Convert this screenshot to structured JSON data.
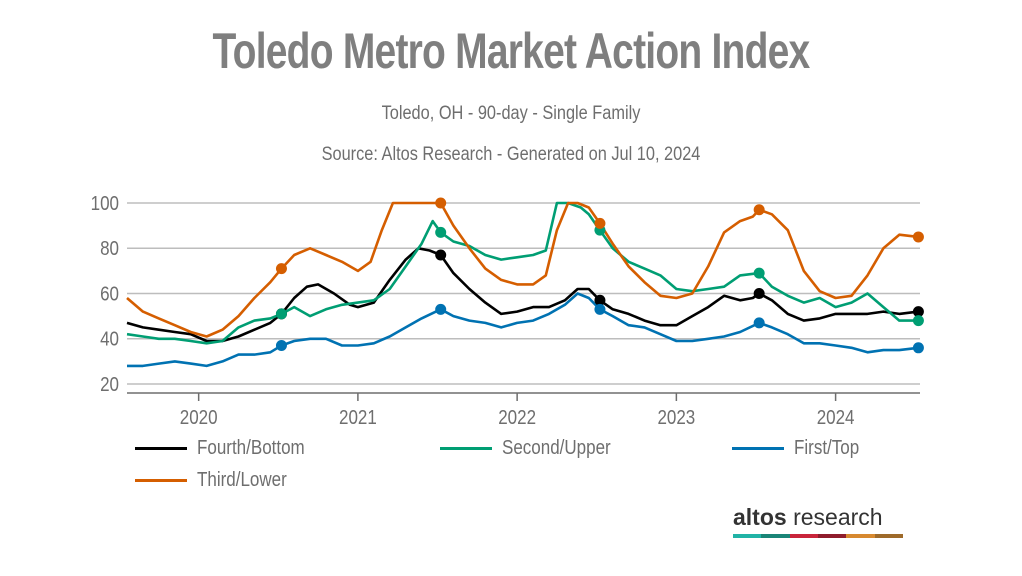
{
  "chart_data": {
    "type": "line",
    "title": "Toledo Metro Market Action Index",
    "subtitle": "Toledo, OH - 90-day - Single Family",
    "source": "Source: Altos Research - Generated on Jul 10, 2024",
    "xlabel": "",
    "ylabel": "",
    "x_range": [
      2019.55,
      2024.53
    ],
    "ylim": [
      20,
      100
    ],
    "yticks": [
      20,
      40,
      60,
      80,
      100
    ],
    "xticks": [
      {
        "value": 2020.0,
        "label": "2020"
      },
      {
        "value": 2021.0,
        "label": "2021"
      },
      {
        "value": 2022.0,
        "label": "2022"
      },
      {
        "value": 2023.0,
        "label": "2023"
      },
      {
        "value": 2024.0,
        "label": "2024"
      }
    ],
    "grid": true,
    "legend_position": "bottom",
    "marker_x": [
      2020.52,
      2021.52,
      2022.52,
      2023.52,
      2024.52
    ],
    "series": [
      {
        "name": "Fourth/Bottom",
        "color": "#000000",
        "x": [
          2019.55,
          2019.65,
          2019.75,
          2019.85,
          2019.95,
          2020.05,
          2020.15,
          2020.25,
          2020.35,
          2020.45,
          2020.52,
          2020.6,
          2020.68,
          2020.75,
          2020.85,
          2020.95,
          2021.0,
          2021.1,
          2021.2,
          2021.3,
          2021.38,
          2021.45,
          2021.52,
          2021.6,
          2021.7,
          2021.8,
          2021.9,
          2022.0,
          2022.1,
          2022.2,
          2022.3,
          2022.38,
          2022.45,
          2022.52,
          2022.6,
          2022.7,
          2022.8,
          2022.9,
          2023.0,
          2023.1,
          2023.2,
          2023.3,
          2023.4,
          2023.48,
          2023.52,
          2023.6,
          2023.7,
          2023.8,
          2023.9,
          2024.0,
          2024.1,
          2024.2,
          2024.3,
          2024.4,
          2024.52
        ],
        "values": [
          47,
          45,
          44,
          43,
          42,
          39,
          39,
          41,
          44,
          47,
          51,
          58,
          63,
          64,
          60,
          55,
          54,
          56,
          66,
          75,
          80,
          79,
          77,
          69,
          62,
          56,
          51,
          52,
          54,
          54,
          57,
          62,
          62,
          57,
          53,
          51,
          48,
          46,
          46,
          50,
          54,
          59,
          57,
          58,
          60,
          57,
          51,
          48,
          49,
          51,
          51,
          51,
          52,
          51,
          52
        ]
      },
      {
        "name": "Second/Upper",
        "color": "#009e73",
        "x": [
          2019.55,
          2019.65,
          2019.75,
          2019.85,
          2019.95,
          2020.05,
          2020.15,
          2020.25,
          2020.35,
          2020.45,
          2020.52,
          2020.6,
          2020.7,
          2020.8,
          2020.9,
          2021.0,
          2021.1,
          2021.2,
          2021.3,
          2021.4,
          2021.47,
          2021.52,
          2021.6,
          2021.7,
          2021.8,
          2021.9,
          2022.0,
          2022.1,
          2022.18,
          2022.25,
          2022.32,
          2022.4,
          2022.45,
          2022.52,
          2022.6,
          2022.7,
          2022.8,
          2022.9,
          2023.0,
          2023.1,
          2023.2,
          2023.3,
          2023.4,
          2023.52,
          2023.6,
          2023.7,
          2023.8,
          2023.9,
          2024.0,
          2024.1,
          2024.2,
          2024.3,
          2024.4,
          2024.52
        ],
        "values": [
          42,
          41,
          40,
          40,
          39,
          38,
          39,
          45,
          48,
          49,
          51,
          54,
          50,
          53,
          55,
          56,
          57,
          62,
          72,
          82,
          92,
          87,
          83,
          81,
          77,
          75,
          76,
          77,
          79,
          100,
          100,
          98,
          95,
          88,
          80,
          74,
          71,
          68,
          62,
          61,
          62,
          63,
          68,
          69,
          63,
          59,
          56,
          58,
          54,
          56,
          60,
          54,
          48,
          48
        ]
      },
      {
        "name": "First/Top",
        "color": "#0072b2",
        "x": [
          2019.55,
          2019.65,
          2019.75,
          2019.85,
          2019.95,
          2020.05,
          2020.15,
          2020.25,
          2020.35,
          2020.45,
          2020.52,
          2020.6,
          2020.7,
          2020.8,
          2020.9,
          2021.0,
          2021.1,
          2021.2,
          2021.3,
          2021.4,
          2021.52,
          2021.6,
          2021.7,
          2021.8,
          2021.9,
          2022.0,
          2022.1,
          2022.2,
          2022.3,
          2022.38,
          2022.45,
          2022.52,
          2022.6,
          2022.7,
          2022.8,
          2022.9,
          2023.0,
          2023.1,
          2023.2,
          2023.3,
          2023.4,
          2023.52,
          2023.6,
          2023.7,
          2023.8,
          2023.9,
          2024.0,
          2024.1,
          2024.2,
          2024.3,
          2024.4,
          2024.52
        ],
        "values": [
          28,
          28,
          29,
          30,
          29,
          28,
          30,
          33,
          33,
          34,
          37,
          39,
          40,
          40,
          37,
          37,
          38,
          41,
          45,
          49,
          53,
          50,
          48,
          47,
          45,
          47,
          48,
          51,
          55,
          60,
          58,
          53,
          50,
          46,
          45,
          42,
          39,
          39,
          40,
          41,
          43,
          47,
          45,
          42,
          38,
          38,
          37,
          36,
          34,
          35,
          35,
          36
        ]
      },
      {
        "name": "Third/Lower",
        "color": "#d55e00",
        "x": [
          2019.55,
          2019.65,
          2019.75,
          2019.85,
          2019.95,
          2020.05,
          2020.15,
          2020.25,
          2020.35,
          2020.45,
          2020.52,
          2020.6,
          2020.7,
          2020.8,
          2020.9,
          2021.0,
          2021.08,
          2021.15,
          2021.22,
          2021.28,
          2021.35,
          2021.45,
          2021.52,
          2021.6,
          2021.7,
          2021.8,
          2021.9,
          2022.0,
          2022.1,
          2022.18,
          2022.25,
          2022.32,
          2022.38,
          2022.45,
          2022.52,
          2022.6,
          2022.7,
          2022.8,
          2022.9,
          2023.0,
          2023.1,
          2023.2,
          2023.3,
          2023.4,
          2023.48,
          2023.52,
          2023.6,
          2023.7,
          2023.8,
          2023.9,
          2024.0,
          2024.1,
          2024.2,
          2024.3,
          2024.4,
          2024.52
        ],
        "values": [
          58,
          52,
          49,
          46,
          43,
          41,
          44,
          50,
          58,
          65,
          71,
          77,
          80,
          77,
          74,
          70,
          74,
          88,
          100,
          100,
          100,
          100,
          100,
          90,
          80,
          71,
          66,
          64,
          64,
          68,
          88,
          100,
          100,
          98,
          91,
          82,
          72,
          65,
          59,
          58,
          60,
          72,
          87,
          92,
          94,
          97,
          95,
          88,
          70,
          61,
          58,
          59,
          68,
          80,
          86,
          85
        ]
      }
    ]
  },
  "legend": [
    {
      "label": "Fourth/Bottom",
      "color": "#000000"
    },
    {
      "label": "Second/Upper",
      "color": "#009e73"
    },
    {
      "label": "First/Top",
      "color": "#0072b2"
    },
    {
      "label": "Third/Lower",
      "color": "#d55e00"
    }
  ],
  "logo": {
    "bold": "altos",
    "light": " research",
    "bar_colors": [
      "#21b3a6",
      "#1a8577",
      "#c9243a",
      "#8f1c2c",
      "#d7892f",
      "#9e6a2a"
    ]
  }
}
